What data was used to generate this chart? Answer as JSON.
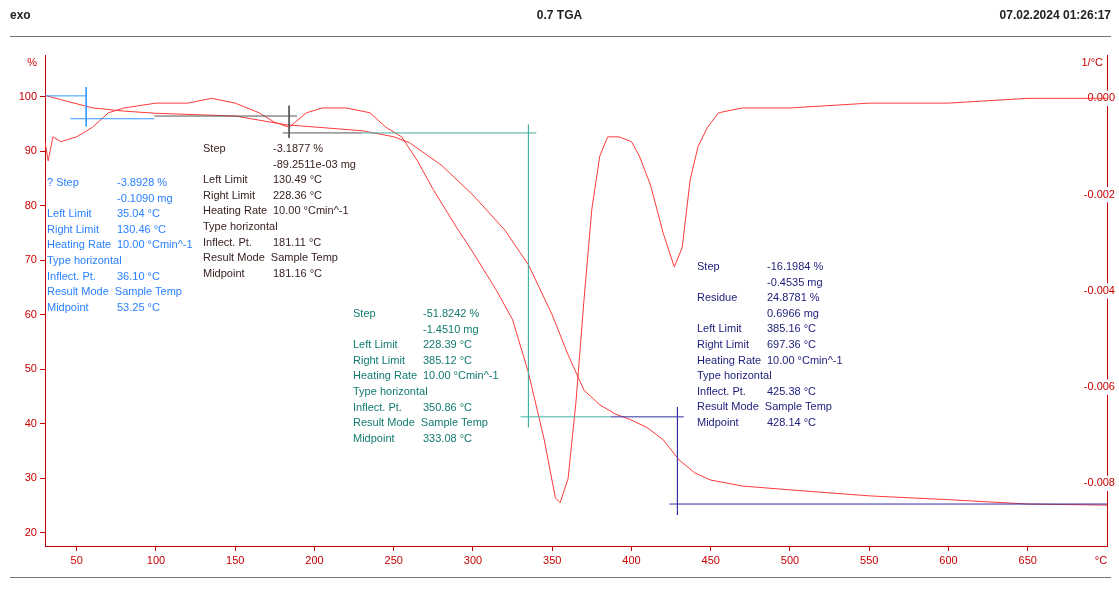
{
  "chart_data": {
    "type": "line",
    "title": "0.7 TGA",
    "xlabel": "°C",
    "ylabel": "%",
    "y2label": "1/°C",
    "xlim": [
      30,
      700
    ],
    "xticks": [
      50,
      100,
      150,
      200,
      250,
      300,
      350,
      400,
      450,
      500,
      550,
      600,
      650
    ],
    "ylim": [
      17.6,
      107.7
    ],
    "yticks": [
      20,
      30,
      40,
      50,
      60,
      70,
      80,
      90,
      100
    ],
    "y2lim": [
      -0.0093,
      0.0009
    ],
    "y2ticks": [
      {
        "value": 0,
        "label": "0.000"
      },
      -0.002,
      -0.004,
      -0.006,
      -0.008
    ],
    "marker": "none",
    "line_style": "solid",
    "series": [
      {
        "color": "#ff3a3a",
        "x": [
          30,
          40,
          60,
          80,
          100,
          130,
          150,
          182,
          230,
          250,
          260,
          280,
          300,
          320,
          335,
          350,
          360,
          370,
          380,
          390,
          400,
          410,
          420,
          430,
          440,
          450,
          470,
          500,
          550,
          600,
          650,
          700
        ],
        "values": [
          100.3,
          99.5,
          98.0,
          97.4,
          97.0,
          96.7,
          96.5,
          94.9,
          93.8,
          92.7,
          91.6,
          87.5,
          82.0,
          75.6,
          69.2,
          60.0,
          52.7,
          46.2,
          43.5,
          41.8,
          40.7,
          39.3,
          37.1,
          33.4,
          31.0,
          29.7,
          28.6,
          27.9,
          26.8,
          26.1,
          25.3,
          25.1
        ]
      },
      {
        "color": "#ff3a3a",
        "axis": "y2",
        "x": [
          30,
          32,
          35,
          40,
          50,
          60,
          70,
          80,
          100,
          120,
          135,
          150,
          165,
          175,
          184,
          195,
          205,
          220,
          235,
          245,
          255,
          265,
          275,
          290,
          300,
          315,
          325,
          335,
          345,
          352,
          355,
          360,
          365,
          370,
          375,
          380,
          385,
          392,
          400,
          405,
          412,
          420,
          427,
          432,
          437,
          442,
          448,
          455,
          470,
          500,
          550,
          600,
          650,
          700
        ],
        "values": [
          -0.0009,
          -0.0013,
          -0.0008,
          -0.0009,
          -0.0008,
          -0.0006,
          -0.0003,
          -0.0002,
          -0.0001,
          -0.0001,
          0,
          -0.0001,
          -0.0003,
          -0.0005,
          -0.0006,
          -0.0003,
          -0.0002,
          -0.0002,
          -0.0003,
          -0.0006,
          -0.0008,
          -0.0013,
          -0.0019,
          -0.0027,
          -0.0032,
          -0.004,
          -0.0046,
          -0.0057,
          -0.0071,
          -0.0083,
          -0.0084,
          -0.0079,
          -0.0063,
          -0.0042,
          -0.0023,
          -0.0012,
          -0.0008,
          -0.0008,
          -0.0009,
          -0.0012,
          -0.0018,
          -0.0028,
          -0.0035,
          -0.0031,
          -0.0017,
          -0.001,
          -0.0006,
          -0.0003,
          -0.0002,
          -0.0002,
          -0.0001,
          -0.0001,
          0,
          0
        ]
      },
      {
        "color": "#3399ff",
        "x": [
          30,
          56
        ],
        "values": [
          100.2,
          100.2
        ]
      },
      {
        "color": "#3399ff",
        "x": [
          56,
          56
        ],
        "values": [
          101.8,
          94.6
        ]
      },
      {
        "color": "#3399ff",
        "x": [
          46,
          99
        ],
        "values": [
          96.0,
          96.0
        ]
      },
      {
        "color": "#555555",
        "x": [
          99,
          189
        ],
        "values": [
          96.5,
          96.5
        ]
      },
      {
        "color": "#555555",
        "x": [
          184,
          184
        ],
        "values": [
          98.4,
          92.5
        ]
      },
      {
        "color": "#555555",
        "x": [
          180,
          230
        ],
        "values": [
          93.4,
          93.4
        ]
      },
      {
        "color": "#40b0a0",
        "x": [
          230,
          340
        ],
        "values": [
          93.4,
          93.4
        ]
      },
      {
        "color": "#40b0a0",
        "x": [
          335,
          335
        ],
        "values": [
          94.9,
          39.4
        ]
      },
      {
        "color": "#40b0a0",
        "x": [
          330,
          387
        ],
        "values": [
          41.3,
          41.3
        ]
      },
      {
        "color": "#3030a0",
        "x": [
          387,
          433
        ],
        "values": [
          41.3,
          41.3
        ]
      },
      {
        "color": "#3030a0",
        "x": [
          429,
          429
        ],
        "values": [
          43.1,
          23.3
        ]
      },
      {
        "color": "#3030a0",
        "x": [
          424,
          700
        ],
        "values": [
          25.3,
          25.3
        ]
      }
    ],
    "annotations": [
      "exo",
      "07.02.2024 01:26:17",
      "? Step",
      "-3.8928 %",
      "-0.1090 mg",
      "Left Limit",
      "35.04 °C",
      "Right Limit",
      "130.46 °C",
      "Heating Rate",
      "10.00 °Cmin^-1",
      "Type horizontal",
      "Inflect. Pt.",
      "36.10 °C",
      "Result Mode  Sample Temp",
      "Midpoint",
      "53.25 °C",
      "Step",
      "-3.1877 %",
      "-89.2511e-03 mg",
      "Left Limit",
      "130.49 °C",
      "Right Limit",
      "228.36 °C",
      "Heating Rate",
      "10.00 °Cmin^-1",
      "Type horizontal",
      "Inflect. Pt.",
      "181.11 °C",
      "Result Mode  Sample Temp",
      "Midpoint",
      "181.16 °C",
      "Step",
      "-51.8242 %",
      "-1.4510 mg",
      "Left Limit",
      "228.39 °C",
      "Right Limit",
      "385.12 °C",
      "Heating Rate",
      "10.00 °Cmin^-1",
      "Type horizontal",
      "Inflect. Pt.",
      "350.86 °C",
      "Result Mode  Sample Temp",
      "Midpoint",
      "333.08 °C",
      "Step",
      "-16.1984 %",
      "-0.4535 mg",
      "Residue",
      "24.8781 %",
      "0.6966 mg",
      "Left Limit",
      "385.16 °C",
      "Right Limit",
      "697.36 °C",
      "Heating Rate",
      "10.00 °Cmin^-1",
      "Type horizontal",
      "Inflect. Pt.",
      "425.38 °C",
      "Result Mode  Sample Temp",
      "Midpoint",
      "428.14 °C"
    ]
  }
}
